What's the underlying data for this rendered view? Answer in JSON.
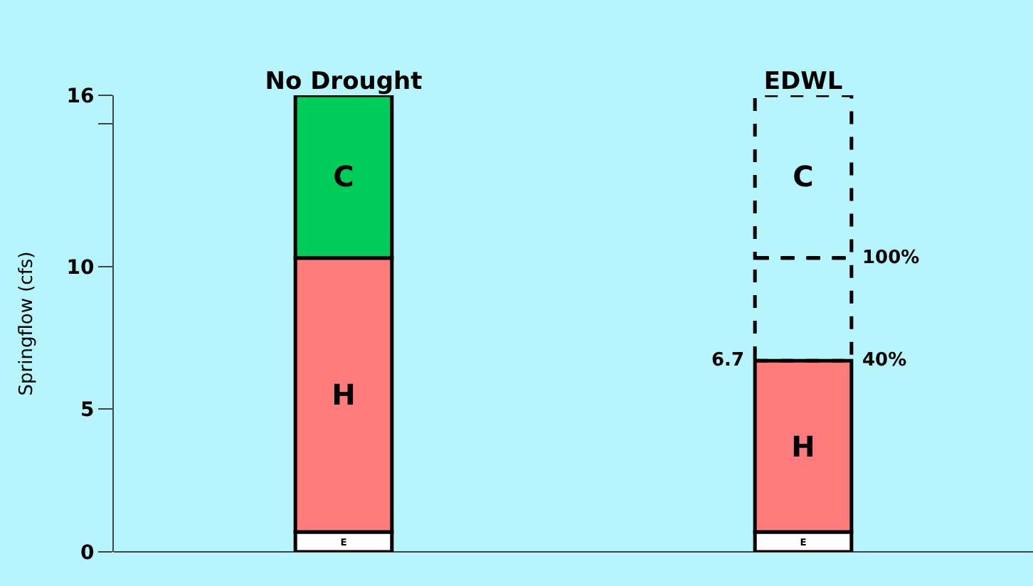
{
  "chart_data": {
    "type": "bar",
    "ylabel": "Springflow (cfs)",
    "categories": [
      "No Drought",
      "EDWL"
    ],
    "stacked": true,
    "ylim": [
      0,
      16
    ],
    "yticks": [
      0,
      5,
      10,
      {
        "value": 15,
        "label": null
      },
      16
    ],
    "legend": false,
    "annotations": [
      "6.7",
      "100%",
      "40%"
    ],
    "series": [
      {
        "name": "E",
        "color": "#ffffff",
        "values": [
          0.7,
          0.7
        ]
      },
      {
        "name": "H",
        "color": "#ff7c7c",
        "values": [
          9.6,
          6.0
        ]
      },
      {
        "name": "C",
        "color": "#00cc5a",
        "values": [
          5.7,
          null
        ]
      },
      {
        "values": [
          null,
          3.6
        ],
        "line_style": "dashed"
      },
      {
        "name": "C",
        "values": [
          null,
          5.7
        ],
        "line_style": "dashed"
      }
    ]
  }
}
